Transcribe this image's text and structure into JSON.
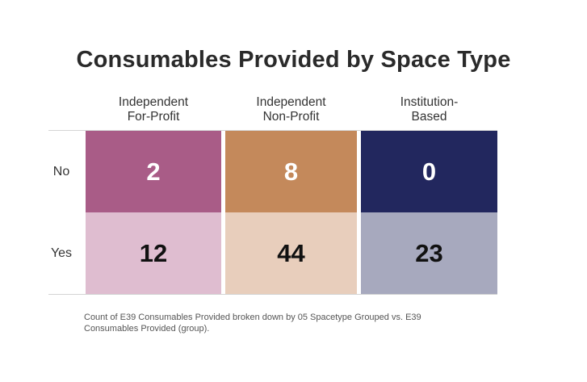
{
  "chart_data": {
    "type": "heatmap",
    "title": "Consumables Provided by Space Type",
    "columns": [
      {
        "lines": [
          "Independent",
          "For-Profit"
        ]
      },
      {
        "lines": [
          "Independent",
          "Non-Profit"
        ]
      },
      {
        "lines": [
          "Institution-",
          "Based"
        ]
      }
    ],
    "rows": [
      "No",
      "Yes"
    ],
    "values": [
      [
        2,
        8,
        0
      ],
      [
        12,
        44,
        23
      ]
    ],
    "colors": [
      [
        "#a95c87",
        "#c4895b",
        "#22275e"
      ],
      [
        "#dfbdd0",
        "#e8cebc",
        "#a7a9be"
      ]
    ],
    "text_colors": [
      [
        "#ffffff",
        "#ffffff",
        "#ffffff"
      ],
      [
        "#111111",
        "#111111",
        "#111111"
      ]
    ],
    "caption": "Count of E39 Consumables Provided broken down by 05 Spacetype Grouped vs. E39 Consumables Provided (group)."
  }
}
